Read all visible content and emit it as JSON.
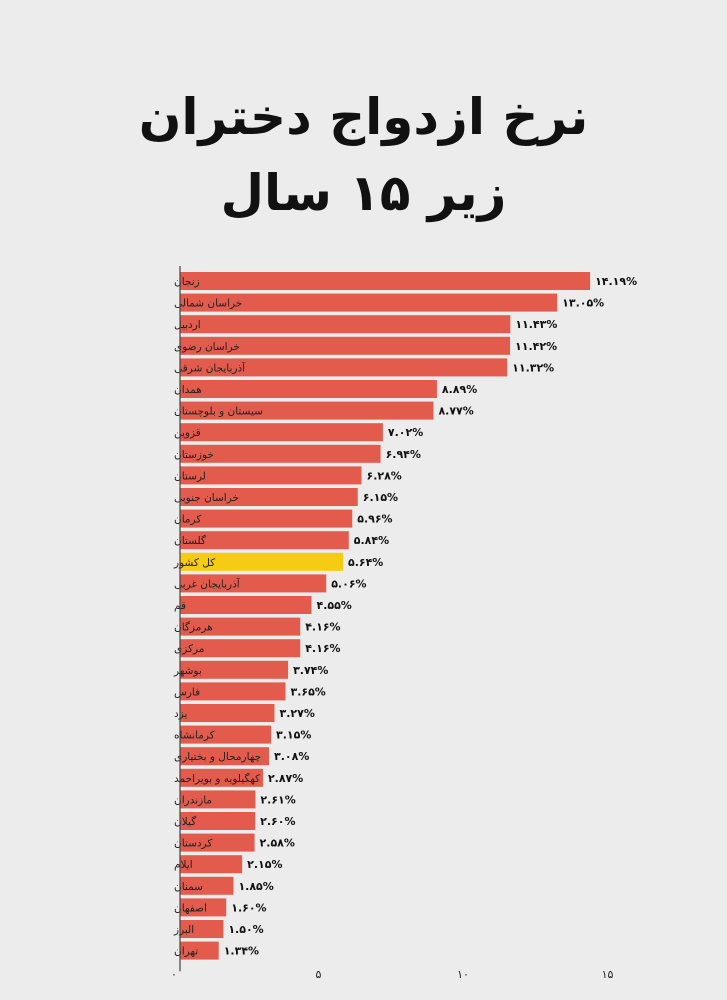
{
  "chart_data": {
    "type": "bar",
    "orientation": "horizontal",
    "title": "نرخ ازدواج دختران زیر ۱۵ سال",
    "title_lines": [
      "نرخ ازدواج دختران",
      "زیر ۱۵ سال"
    ],
    "xlim": [
      0,
      15
    ],
    "xticks": [
      0,
      5,
      10,
      15
    ],
    "xtick_labels": [
      "۰",
      "۵",
      "۱۰",
      "۱۵"
    ],
    "grid": false,
    "colors": {
      "bar": "#e35b4c",
      "highlight": "#f5cb14",
      "axis": "#444444"
    },
    "categories": [
      "زنجان",
      "خراسان شمالی",
      "اردبیل",
      "خراسان رضوی",
      "آذربایجان شرقی",
      "همدان",
      "سیستان و بلوچستان",
      "قزوین",
      "خوزستان",
      "لرستان",
      "خراسان جنوبی",
      "کرمان",
      "گلستان",
      "کل کشور",
      "آذربایجان غربی",
      "قم",
      "هرمزگان",
      "مرکزی",
      "بوشهر",
      "فارس",
      "یزد",
      "کرمانشاه",
      "چهارمحال و بختیاری",
      "کهگیلویه و بویراحمد",
      "مازندران",
      "گیلان",
      "کردستان",
      "ایلام",
      "سمنان",
      "اصفهان",
      "البرز",
      "تهران"
    ],
    "values": [
      14.19,
      13.05,
      11.43,
      11.42,
      11.32,
      8.89,
      8.77,
      7.02,
      6.94,
      6.28,
      6.15,
      5.96,
      5.84,
      5.64,
      5.06,
      4.55,
      4.16,
      4.16,
      3.74,
      3.65,
      3.27,
      3.15,
      3.08,
      2.87,
      2.61,
      2.6,
      2.58,
      2.15,
      1.85,
      1.6,
      1.5,
      1.34
    ],
    "value_labels": [
      "۱۴.۱۹%",
      "۱۳.۰۵%",
      "۱۱.۴۳%",
      "۱۱.۴۲%",
      "۱۱.۳۲%",
      "۸.۸۹%",
      "۸.۷۷%",
      "۷.۰۲%",
      "۶.۹۴%",
      "۶.۲۸%",
      "۶.۱۵%",
      "۵.۹۶%",
      "۵.۸۴%",
      "۵.۶۴%",
      "۵.۰۶%",
      "۴.۵۵%",
      "۴.۱۶%",
      "۴.۱۶%",
      "۳.۷۴%",
      "۳.۶۵%",
      "۳.۲۷%",
      "۳.۱۵%",
      "۳.۰۸%",
      "۲.۸۷%",
      "۲.۶۱%",
      "۲.۶۰%",
      "۲.۵۸%",
      "۲.۱۵%",
      "۱.۸۵%",
      "۱.۶۰%",
      "۱.۵۰%",
      "۱.۳۴%"
    ],
    "highlight_category": "کل کشور"
  }
}
